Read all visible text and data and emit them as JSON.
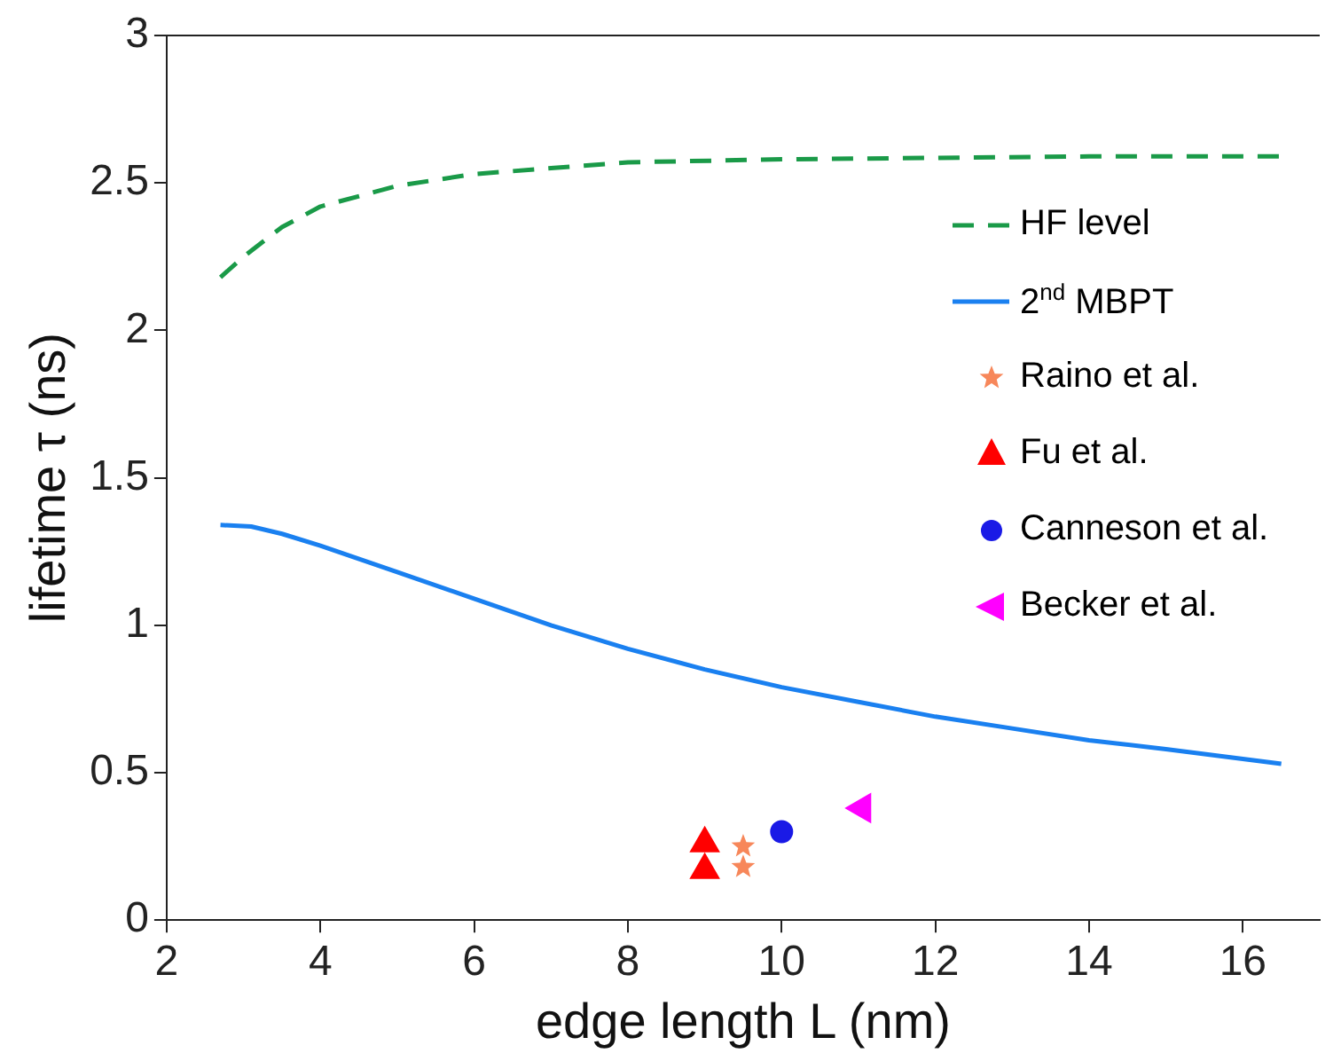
{
  "chart_data": {
    "type": "line",
    "xlabel": "edge length L (nm)",
    "ylabel": "lifetime τ (ns)",
    "xlim": [
      2,
      17
    ],
    "xticks": [
      2,
      4,
      6,
      8,
      10,
      12,
      14,
      16
    ],
    "ylim": [
      0,
      3
    ],
    "yticks": [
      0,
      0.5,
      1,
      1.5,
      2,
      2.5,
      3
    ],
    "grid": false,
    "legend": "right",
    "series": [
      {
        "name": "HF level",
        "type": "line",
        "line_style": "dashed",
        "color": "#1a9a48",
        "x": [
          2.7,
          3,
          3.5,
          4,
          5,
          6,
          7,
          8,
          10,
          12,
          14,
          16.5
        ],
        "values": [
          2.18,
          2.25,
          2.35,
          2.42,
          2.49,
          2.53,
          2.55,
          2.57,
          2.58,
          2.585,
          2.59,
          2.59
        ]
      },
      {
        "name": "2$^{nd}$ MBPT",
        "type": "line",
        "line_style": "solid",
        "color": "#1a80f0",
        "x": [
          2.7,
          3.1,
          3.5,
          4,
          5,
          6,
          7,
          8,
          9,
          10,
          11,
          12,
          13,
          14,
          15,
          16.5
        ],
        "values": [
          1.34,
          1.335,
          1.31,
          1.27,
          1.18,
          1.09,
          1.0,
          0.92,
          0.85,
          0.79,
          0.74,
          0.69,
          0.65,
          0.61,
          0.58,
          0.53
        ]
      },
      {
        "name": "Raino et al.",
        "type": "scatter",
        "marker": "star",
        "color": "#f7875a",
        "x": [
          9.5,
          9.5
        ],
        "values": [
          0.25,
          0.18
        ]
      },
      {
        "name": "Fu et al.",
        "type": "scatter",
        "marker": "triangle",
        "color": "#ff0000",
        "x": [
          9,
          9
        ],
        "values": [
          0.26,
          0.17
        ]
      },
      {
        "name": "Canneson et al.",
        "type": "scatter",
        "marker": "circle",
        "color": "#1a1ae6",
        "x": [
          10
        ],
        "values": [
          0.3
        ]
      },
      {
        "name": "Becker et al.",
        "type": "scatter",
        "marker": "triangle-left",
        "color": "#ff00ff",
        "x": [
          11.05
        ],
        "values": [
          0.38
        ]
      }
    ]
  }
}
